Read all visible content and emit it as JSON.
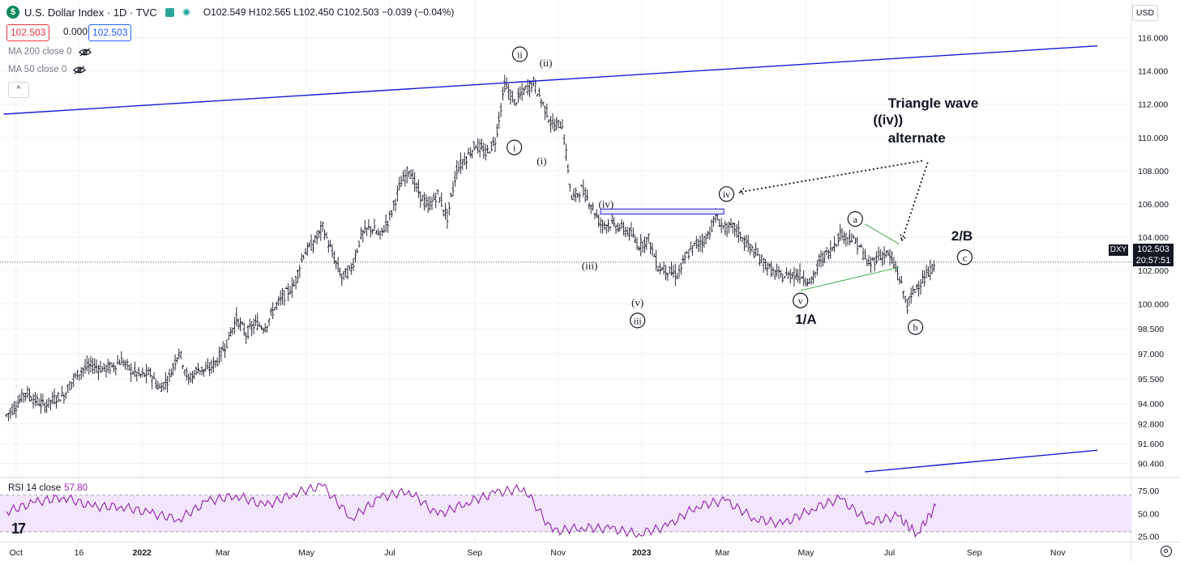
{
  "header": {
    "logo_symbol": "$",
    "title": "U.S. Dollar Index · 1D · TVC",
    "ohlc": "O102.549 H102.565 L102.450 C102.503 −0.039 (−0.04%)",
    "bid": "102.503",
    "spread": "0.000",
    "ask": "102.503",
    "flag_icon": "flag-icon",
    "status_icon": "market-status-dot-icon"
  },
  "indicators": {
    "ma200": "MA 200 close 0",
    "ma50": "MA 50 close 0",
    "collapse": "^",
    "rsi_label": "RSI 14 close",
    "rsi_value": "57.80"
  },
  "price_scale": {
    "currency": "USD",
    "symbol_tag": "DXY",
    "last_price": "102.503",
    "countdown": "20:57:51"
  },
  "watermark": "17",
  "colors": {
    "candles": "#131722",
    "trendline": "#1a1ad6",
    "triangle": "#4caf50",
    "rsi_line": "#8e24aa",
    "rsi_band": "#f3e5fc",
    "grid": "#eef0f3"
  },
  "chart_data": [
    {
      "type": "ohlc-line",
      "name": "DXY",
      "dates": [
        "2021-09-24",
        "2021-10-01",
        "2021-10-08",
        "2021-10-15",
        "2021-10-22",
        "2021-10-29",
        "2021-11-05",
        "2021-11-12",
        "2021-11-19",
        "2021-11-26",
        "2021-12-03",
        "2021-12-10",
        "2021-12-17",
        "2021-12-24",
        "2021-12-31",
        "2022-01-07",
        "2022-01-14",
        "2022-01-21",
        "2022-01-28",
        "2022-02-04",
        "2022-02-11",
        "2022-02-18",
        "2022-02-25",
        "2022-03-04",
        "2022-03-11",
        "2022-03-18",
        "2022-03-25",
        "2022-04-01",
        "2022-04-08",
        "2022-04-15",
        "2022-04-22",
        "2022-04-29",
        "2022-05-06",
        "2022-05-13",
        "2022-05-20",
        "2022-05-27",
        "2022-06-03",
        "2022-06-10",
        "2022-06-17",
        "2022-06-24",
        "2022-07-01",
        "2022-07-08",
        "2022-07-15",
        "2022-07-22",
        "2022-07-29",
        "2022-08-05",
        "2022-08-12",
        "2022-08-19",
        "2022-08-26",
        "2022-09-02",
        "2022-09-09",
        "2022-09-16",
        "2022-09-23",
        "2022-09-30",
        "2022-10-07",
        "2022-10-14",
        "2022-10-21",
        "2022-10-28",
        "2022-11-04",
        "2022-11-11",
        "2022-11-18",
        "2022-11-25",
        "2022-12-02",
        "2022-12-09",
        "2022-12-16",
        "2022-12-23",
        "2022-12-30",
        "2023-01-06",
        "2023-01-13",
        "2023-01-20",
        "2023-01-27",
        "2023-02-03",
        "2023-02-10",
        "2023-02-17",
        "2023-02-24",
        "2023-03-03",
        "2023-03-10",
        "2023-03-17",
        "2023-03-24",
        "2023-03-31",
        "2023-04-07",
        "2023-04-14",
        "2023-04-21",
        "2023-04-28",
        "2023-05-05",
        "2023-05-12",
        "2023-05-19",
        "2023-05-26",
        "2023-06-02",
        "2023-06-09",
        "2023-06-16",
        "2023-06-23",
        "2023-06-30",
        "2023-07-07",
        "2023-07-14",
        "2023-07-21",
        "2023-07-28",
        "2023-08-04"
      ],
      "values": [
        93.3,
        93.9,
        94.7,
        94.2,
        93.9,
        94.3,
        94.5,
        95.5,
        96.1,
        96.3,
        96.1,
        96.2,
        96.6,
        96.0,
        95.7,
        95.8,
        94.9,
        95.6,
        97.2,
        95.4,
        96.1,
        96.0,
        96.6,
        97.7,
        99.1,
        98.2,
        98.8,
        98.6,
        99.8,
        100.5,
        101.1,
        103.0,
        103.6,
        104.6,
        103.0,
        101.6,
        102.1,
        104.1,
        104.6,
        104.1,
        105.2,
        107.0,
        108.1,
        106.7,
        105.8,
        106.6,
        105.2,
        108.1,
        108.8,
        109.6,
        109.0,
        109.8,
        113.2,
        112.1,
        112.8,
        113.3,
        112.0,
        110.7,
        110.8,
        106.3,
        106.9,
        106.0,
        104.8,
        104.8,
        104.6,
        104.3,
        103.5,
        103.9,
        102.2,
        102.0,
        101.7,
        102.9,
        103.6,
        103.9,
        105.2,
        104.5,
        104.6,
        103.8,
        103.1,
        102.5,
        101.9,
        101.6,
        101.8,
        101.7,
        101.3,
        102.7,
        103.2,
        104.2,
        104.0,
        103.5,
        102.3,
        102.9,
        103.0,
        101.9,
        99.9,
        101.1,
        101.6,
        102.5
      ],
      "ylim": [
        89.8,
        116.8
      ],
      "y_ticks": [
        "116.000",
        "114.000",
        "112.000",
        "110.000",
        "108.000",
        "106.000",
        "104.000",
        "102.000",
        "100.000",
        "98.500",
        "97.000",
        "95.500",
        "94.000",
        "92.800",
        "91.600",
        "90.400"
      ],
      "x_ticks": [
        "Oct",
        "16",
        "2022",
        "Mar",
        "May",
        "Jul",
        "Sep",
        "Nov",
        "2023",
        "Mar",
        "May",
        "Jul",
        "Sep",
        "Nov"
      ],
      "annotations": [
        {
          "text": "ii",
          "date": "2022-10-04",
          "value": 115.0,
          "circle": true
        },
        {
          "text": "(ii)",
          "date": "2022-10-23",
          "value": 114.5,
          "circle": false
        },
        {
          "text": "i",
          "date": "2022-09-30",
          "value": 109.4,
          "circle": true
        },
        {
          "text": "(i)",
          "date": "2022-10-20",
          "value": 108.6,
          "circle": false
        },
        {
          "text": "(iv)",
          "date": "2022-12-06",
          "value": 106.0,
          "circle": false
        },
        {
          "text": "iv",
          "date": "2023-03-04",
          "value": 106.6,
          "circle": true
        },
        {
          "text": "(iii)",
          "date": "2022-11-24",
          "value": 102.3,
          "circle": false
        },
        {
          "text": "(v)",
          "date": "2022-12-29",
          "value": 100.1,
          "circle": false
        },
        {
          "text": "iii",
          "date": "2022-12-29",
          "value": 99.0,
          "circle": true
        },
        {
          "text": "v",
          "date": "2023-04-27",
          "value": 100.2,
          "circle": true
        },
        {
          "text": "a",
          "date": "2023-06-06",
          "value": 105.1,
          "circle": true
        },
        {
          "text": "b",
          "date": "2023-07-20",
          "value": 98.6,
          "circle": true
        },
        {
          "text": "c",
          "date": "2023-08-25",
          "value": 102.8,
          "circle": true
        }
      ],
      "labels": [
        {
          "text": "1/A",
          "date": "2023-05-01",
          "value": 98.8
        },
        {
          "text": "2/B",
          "date": "2023-08-23",
          "value": 103.8
        },
        {
          "text": "Triangle wave",
          "date": "2023-06-30",
          "value": 111.8
        },
        {
          "text": "((iv))",
          "date": "2023-06-30",
          "value": 110.8
        },
        {
          "text": "alternate",
          "date": "2023-06-30",
          "value": 109.7
        }
      ],
      "lines": [
        {
          "style": "solid",
          "color": "trendline",
          "from": {
            "date": "2021-09-22",
            "value": 111.4
          },
          "to": {
            "date": "2023-11-30",
            "value": 115.5
          }
        },
        {
          "style": "solid",
          "color": "trendline",
          "from": {
            "date": "2023-06-13",
            "value": 89.9
          },
          "to": {
            "date": "2023-11-30",
            "value": 91.2
          }
        },
        {
          "style": "solid",
          "color": "triangle",
          "from": {
            "date": "2023-06-13",
            "value": 104.8
          },
          "to": {
            "date": "2023-07-08",
            "value": 103.6
          }
        },
        {
          "style": "solid",
          "color": "triangle",
          "from": {
            "date": "2023-04-27",
            "value": 100.8
          },
          "to": {
            "date": "2023-07-08",
            "value": 102.2
          }
        },
        {
          "style": "dotted",
          "color": "candles",
          "from": {
            "date": "2023-07-25",
            "value": 108.6
          },
          "to": {
            "date": "2023-03-13",
            "value": 106.7
          }
        },
        {
          "style": "dotted",
          "color": "candles",
          "from": {
            "date": "2023-07-29",
            "value": 108.5
          },
          "to": {
            "date": "2023-07-10",
            "value": 103.8
          }
        }
      ],
      "boxes": [
        {
          "from": {
            "date": "2022-12-02",
            "value": 105.7
          },
          "to": {
            "date": "2023-03-02",
            "value": 105.4
          },
          "color": "trendline"
        }
      ],
      "last_price_line": 102.503
    },
    {
      "type": "line",
      "name": "RSI 14 close",
      "dates": [
        "2021-09-24",
        "2021-10-15",
        "2021-11-05",
        "2021-11-26",
        "2021-12-17",
        "2022-01-07",
        "2022-01-28",
        "2022-02-18",
        "2022-03-11",
        "2022-04-01",
        "2022-04-22",
        "2022-05-13",
        "2022-06-03",
        "2022-06-24",
        "2022-07-15",
        "2022-08-05",
        "2022-08-26",
        "2022-09-16",
        "2022-10-07",
        "2022-10-28",
        "2022-11-18",
        "2022-12-09",
        "2022-12-30",
        "2023-01-20",
        "2023-02-10",
        "2023-03-03",
        "2023-03-24",
        "2023-04-14",
        "2023-05-05",
        "2023-05-26",
        "2023-06-16",
        "2023-07-07",
        "2023-07-21",
        "2023-08-04"
      ],
      "values": [
        52,
        62,
        68,
        57,
        58,
        50,
        44,
        63,
        70,
        58,
        72,
        80,
        45,
        67,
        75,
        48,
        62,
        72,
        78,
        30,
        35,
        33,
        28,
        36,
        58,
        64,
        45,
        38,
        55,
        66,
        41,
        47,
        28,
        58
      ],
      "ylim": [
        22,
        82
      ],
      "y_ticks": [
        "75.00",
        "50.00",
        "25.00"
      ],
      "band": [
        30,
        70
      ]
    }
  ]
}
